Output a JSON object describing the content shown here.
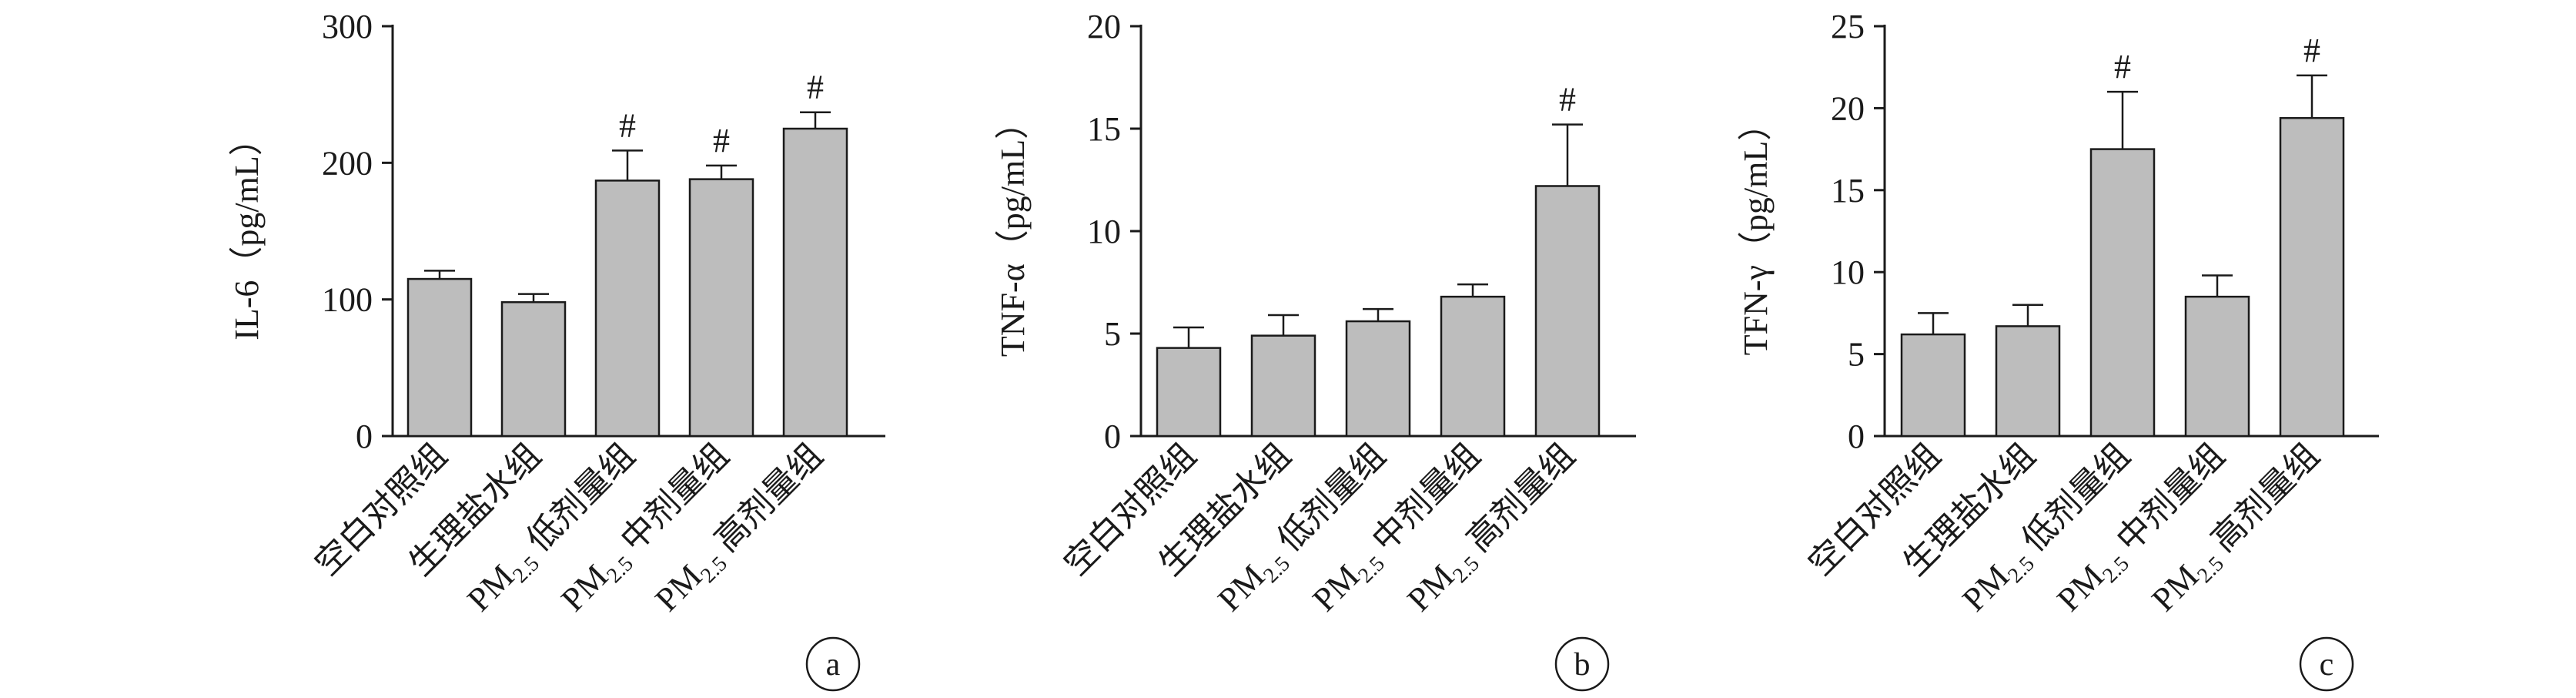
{
  "chart_data": [
    {
      "type": "bar",
      "panel_label": "a",
      "ylabel": "IL-6（pg/mL）",
      "ylim": [
        0,
        300
      ],
      "yticks": [
        0,
        100,
        200,
        300
      ],
      "categories": [
        {
          "prefix": "",
          "sub": "",
          "name": "空白对照组"
        },
        {
          "prefix": "",
          "sub": "",
          "name": "生理盐水组"
        },
        {
          "prefix": "PM",
          "sub": "2.5",
          "name": " 低剂量组"
        },
        {
          "prefix": "PM",
          "sub": "2.5",
          "name": " 中剂量组"
        },
        {
          "prefix": "PM",
          "sub": "2.5",
          "name": " 高剂量组"
        }
      ],
      "values": [
        115,
        98,
        187,
        188,
        225
      ],
      "errors": [
        6,
        6,
        22,
        10,
        12
      ],
      "significance": [
        "",
        "",
        "#",
        "#",
        "#"
      ],
      "bar_color": "#bdbdbd"
    },
    {
      "type": "bar",
      "panel_label": "b",
      "ylabel": "TNF-α（pg/mL）",
      "ylim": [
        0,
        20
      ],
      "yticks": [
        0,
        5,
        10,
        15,
        20
      ],
      "categories": [
        {
          "prefix": "",
          "sub": "",
          "name": "空白对照组"
        },
        {
          "prefix": "",
          "sub": "",
          "name": "生理盐水组"
        },
        {
          "prefix": "PM",
          "sub": "2.5",
          "name": " 低剂量组"
        },
        {
          "prefix": "PM",
          "sub": "2.5",
          "name": " 中剂量组"
        },
        {
          "prefix": "PM",
          "sub": "2.5",
          "name": " 高剂量组"
        }
      ],
      "values": [
        4.3,
        4.9,
        5.6,
        6.8,
        12.2
      ],
      "errors": [
        1.0,
        1.0,
        0.6,
        0.6,
        3.0
      ],
      "significance": [
        "",
        "",
        "",
        "",
        "#"
      ],
      "bar_color": "#bdbdbd"
    },
    {
      "type": "bar",
      "panel_label": "c",
      "ylabel": "TFN-γ（pg/mL）",
      "ylim": [
        0,
        25
      ],
      "yticks": [
        0,
        5,
        10,
        15,
        20,
        25
      ],
      "categories": [
        {
          "prefix": "",
          "sub": "",
          "name": "空白对照组"
        },
        {
          "prefix": "",
          "sub": "",
          "name": "生理盐水组"
        },
        {
          "prefix": "PM",
          "sub": "2.5",
          "name": " 低剂量组"
        },
        {
          "prefix": "PM",
          "sub": "2.5",
          "name": " 中剂量组"
        },
        {
          "prefix": "PM",
          "sub": "2.5",
          "name": " 高剂量组"
        }
      ],
      "values": [
        6.2,
        6.7,
        17.5,
        8.5,
        19.4
      ],
      "errors": [
        1.3,
        1.3,
        3.5,
        1.3,
        2.6
      ],
      "significance": [
        "",
        "",
        "#",
        "",
        "#"
      ],
      "bar_color": "#bdbdbd"
    }
  ]
}
